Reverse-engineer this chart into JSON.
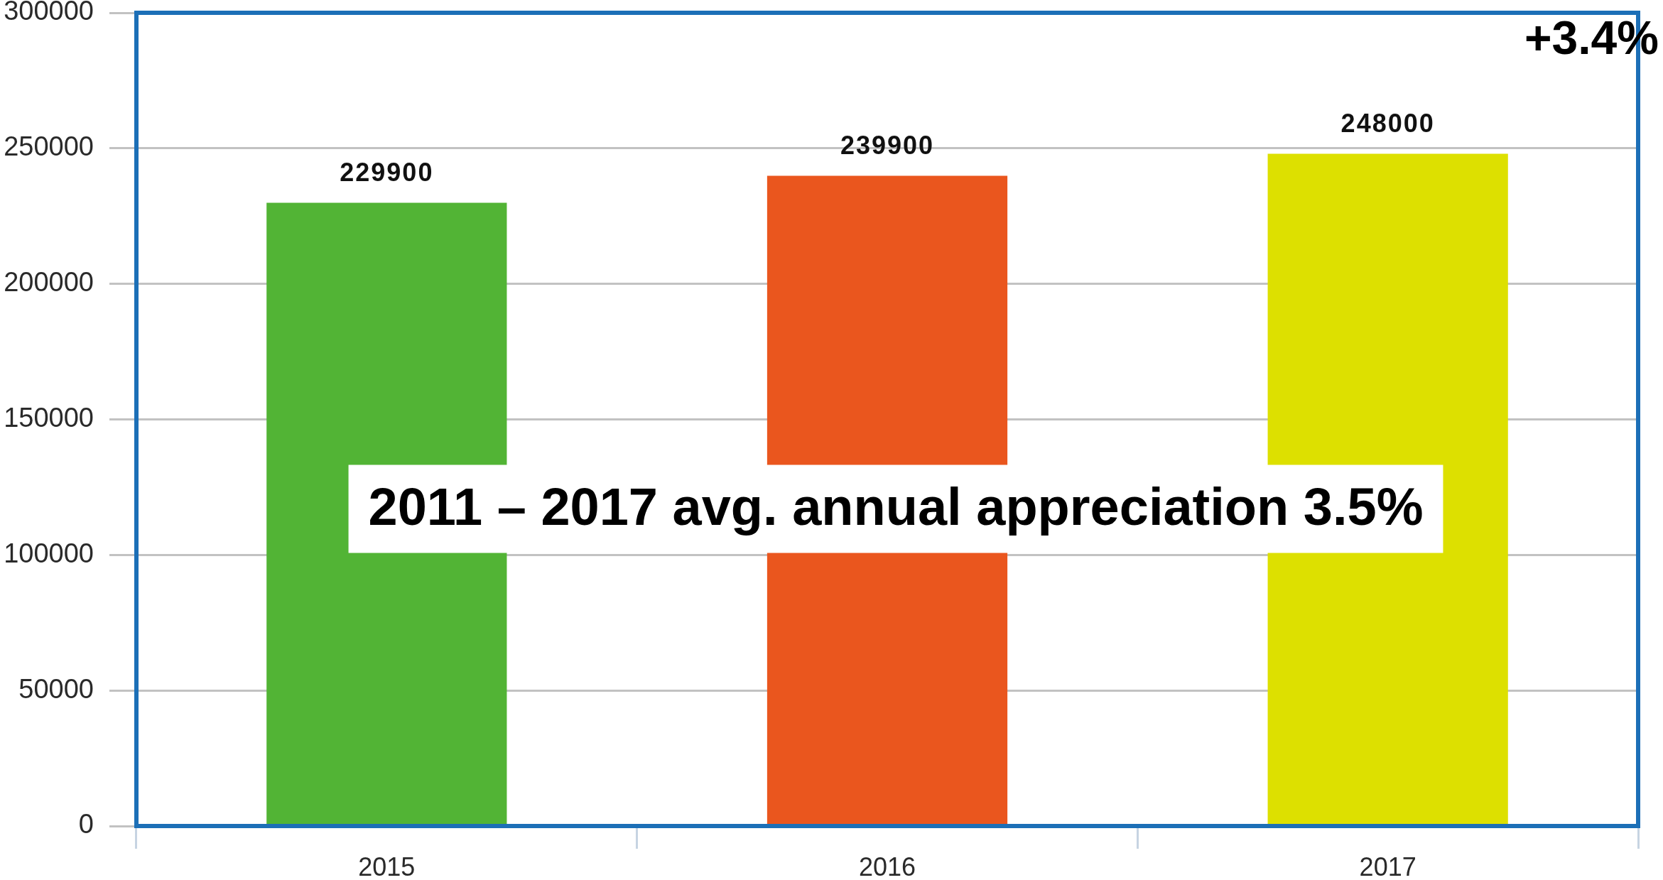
{
  "chart_data": {
    "type": "bar",
    "categories": [
      "2015",
      "2016",
      "2017"
    ],
    "values": [
      229900,
      239900,
      248000
    ],
    "colors": [
      "#52b435",
      "#ea561e",
      "#dde000"
    ],
    "ylim": [
      0,
      300000
    ],
    "yticks": [
      0,
      50000,
      100000,
      150000,
      200000,
      250000,
      300000
    ],
    "grid": "y",
    "data_labels": true,
    "annotations": [
      "+3.4%",
      "2011 – 2017 avg. annual appreciation 3.5%"
    ]
  }
}
